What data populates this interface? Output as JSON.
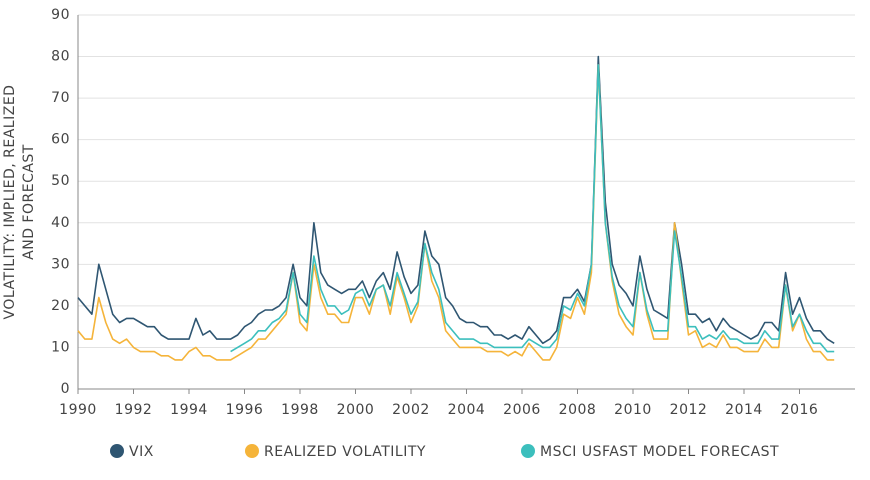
{
  "chart_data": {
    "type": "line",
    "y_label": [
      "VOLATILITY: IMPLIED, REALIZED",
      "AND FORECAST"
    ],
    "x": [
      1990,
      1990.25,
      1990.5,
      1990.75,
      1991,
      1991.25,
      1991.5,
      1991.75,
      1992,
      1992.25,
      1992.5,
      1992.75,
      1993,
      1993.25,
      1993.5,
      1993.75,
      1994,
      1994.25,
      1994.5,
      1994.75,
      1995,
      1995.25,
      1995.5,
      1995.75,
      1996,
      1996.25,
      1996.5,
      1996.75,
      1997,
      1997.25,
      1997.5,
      1997.75,
      1998,
      1998.25,
      1998.5,
      1998.75,
      1999,
      1999.25,
      1999.5,
      1999.75,
      2000,
      2000.25,
      2000.5,
      2000.75,
      2001,
      2001.25,
      2001.5,
      2001.75,
      2002,
      2002.25,
      2002.5,
      2002.75,
      2003,
      2003.25,
      2003.5,
      2003.75,
      2004,
      2004.25,
      2004.5,
      2004.75,
      2005,
      2005.25,
      2005.5,
      2005.75,
      2006,
      2006.25,
      2006.5,
      2006.75,
      2007,
      2007.25,
      2007.5,
      2007.75,
      2008,
      2008.25,
      2008.5,
      2008.75,
      2009,
      2009.25,
      2009.5,
      2009.75,
      2010,
      2010.25,
      2010.5,
      2010.75,
      2011,
      2011.25,
      2011.5,
      2011.75,
      2012,
      2012.25,
      2012.5,
      2012.75,
      2013,
      2013.25,
      2013.5,
      2013.75,
      2014,
      2014.25,
      2014.5,
      2014.75,
      2015,
      2015.25,
      2015.5,
      2015.75,
      2016,
      2016.25,
      2016.5,
      2016.75,
      2017,
      2017.25
    ],
    "series": [
      {
        "name": "VIX",
        "color": "#2f5672",
        "values": [
          22,
          20,
          18,
          30,
          24,
          18,
          16,
          17,
          17,
          16,
          15,
          15,
          13,
          12,
          12,
          12,
          12,
          17,
          13,
          14,
          12,
          12,
          12,
          13,
          15,
          16,
          18,
          19,
          19,
          20,
          22,
          30,
          22,
          20,
          40,
          28,
          25,
          24,
          23,
          24,
          24,
          26,
          22,
          26,
          28,
          24,
          33,
          27,
          23,
          25,
          38,
          32,
          30,
          22,
          20,
          17,
          16,
          16,
          15,
          15,
          13,
          13,
          12,
          13,
          12,
          15,
          13,
          11,
          12,
          14,
          22,
          22,
          24,
          21,
          30,
          80,
          45,
          30,
          25,
          23,
          20,
          32,
          24,
          19,
          18,
          17,
          40,
          30,
          18,
          18,
          16,
          17,
          14,
          17,
          15,
          14,
          13,
          12,
          13,
          16,
          16,
          14,
          28,
          18,
          22,
          17,
          14,
          14,
          12,
          11
        ]
      },
      {
        "name": "REALIZED VOLATILITY",
        "color": "#f5b43a",
        "values": [
          14,
          12,
          12,
          22,
          16,
          12,
          11,
          12,
          10,
          9,
          9,
          9,
          8,
          8,
          7,
          7,
          9,
          10,
          8,
          8,
          7,
          7,
          7,
          8,
          9,
          10,
          12,
          12,
          14,
          16,
          18,
          28,
          16,
          14,
          30,
          22,
          18,
          18,
          16,
          16,
          22,
          22,
          18,
          24,
          25,
          18,
          27,
          22,
          16,
          20,
          35,
          26,
          22,
          14,
          12,
          10,
          10,
          10,
          10,
          9,
          9,
          9,
          8,
          9,
          8,
          11,
          9,
          7,
          7,
          10,
          18,
          17,
          22,
          18,
          28,
          78,
          40,
          26,
          18,
          15,
          13,
          28,
          18,
          12,
          12,
          12,
          40,
          26,
          13,
          14,
          10,
          11,
          10,
          13,
          10,
          10,
          9,
          9,
          9,
          12,
          10,
          10,
          25,
          14,
          18,
          12,
          9,
          9,
          7,
          7
        ]
      },
      {
        "name": "MSCI USFAST MODEL FORECAST",
        "color": "#3cbfbd",
        "values": [
          null,
          null,
          null,
          null,
          null,
          null,
          null,
          null,
          null,
          null,
          null,
          null,
          null,
          null,
          null,
          null,
          null,
          null,
          null,
          null,
          null,
          null,
          9,
          10,
          11,
          12,
          14,
          14,
          16,
          17,
          19,
          28,
          18,
          16,
          32,
          24,
          20,
          20,
          18,
          19,
          23,
          24,
          20,
          24,
          25,
          20,
          28,
          23,
          18,
          21,
          35,
          28,
          24,
          16,
          14,
          12,
          12,
          12,
          11,
          11,
          10,
          10,
          10,
          10,
          10,
          12,
          11,
          10,
          10,
          12,
          20,
          19,
          23,
          20,
          30,
          78,
          40,
          27,
          20,
          17,
          15,
          28,
          19,
          14,
          14,
          14,
          38,
          27,
          15,
          15,
          12,
          13,
          12,
          14,
          12,
          12,
          11,
          11,
          11,
          14,
          12,
          12,
          25,
          15,
          18,
          14,
          11,
          11,
          9,
          9
        ]
      }
    ],
    "xlim": [
      1990,
      2018
    ],
    "xticks": [
      1990,
      1992,
      1994,
      1996,
      1998,
      2000,
      2002,
      2004,
      2006,
      2008,
      2010,
      2012,
      2014,
      2016
    ],
    "ylim": [
      0,
      90
    ],
    "yticks": [
      0,
      10,
      20,
      30,
      40,
      50,
      60,
      70,
      80,
      90
    ],
    "grid": true
  }
}
